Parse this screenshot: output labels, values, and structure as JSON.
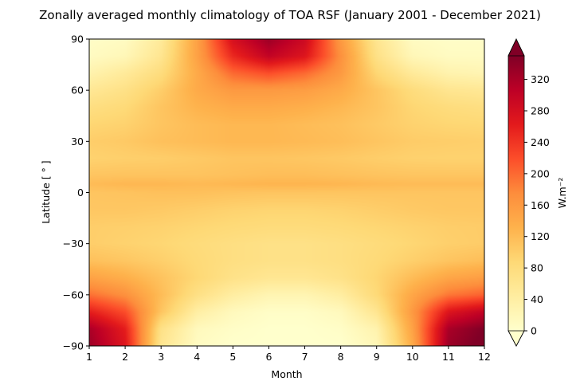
{
  "chart_data": {
    "type": "heatmap",
    "title": "Zonally averaged monthly climatology of TOA RSF (January 2001 - December 2021)",
    "xlabel": "Month",
    "ylabel": "Latitude [ ° ]",
    "x": [
      1,
      2,
      3,
      4,
      5,
      6,
      7,
      8,
      9,
      10,
      11,
      12
    ],
    "xlim": [
      1,
      12
    ],
    "ylim": [
      -90,
      90
    ],
    "xticks": [
      "1",
      "2",
      "3",
      "4",
      "5",
      "6",
      "7",
      "8",
      "9",
      "10",
      "11",
      "12"
    ],
    "yticks": [
      "90",
      "60",
      "30",
      "0",
      "−30",
      "−60",
      "−90"
    ],
    "ytick_values": [
      90,
      60,
      30,
      0,
      -30,
      -60,
      -90
    ],
    "latitudes": [
      90,
      80,
      70,
      60,
      50,
      40,
      30,
      20,
      10,
      5,
      0,
      -10,
      -20,
      -30,
      -40,
      -50,
      -60,
      -70,
      -80,
      -90
    ],
    "values": [
      [
        5,
        10,
        50,
        150,
        280,
        330,
        290,
        160,
        60,
        10,
        5,
        5
      ],
      [
        10,
        20,
        60,
        150,
        250,
        300,
        270,
        170,
        70,
        20,
        10,
        10
      ],
      [
        30,
        50,
        80,
        140,
        200,
        220,
        200,
        160,
        90,
        50,
        30,
        25
      ],
      [
        55,
        70,
        100,
        140,
        160,
        160,
        155,
        140,
        110,
        80,
        60,
        55
      ],
      [
        75,
        85,
        110,
        130,
        140,
        140,
        135,
        125,
        110,
        90,
        80,
        75
      ],
      [
        90,
        95,
        110,
        120,
        125,
        125,
        120,
        115,
        105,
        95,
        90,
        88
      ],
      [
        100,
        105,
        115,
        120,
        125,
        125,
        122,
        118,
        110,
        102,
        100,
        98
      ],
      [
        95,
        98,
        100,
        105,
        110,
        110,
        108,
        105,
        100,
        96,
        95,
        95
      ],
      [
        110,
        112,
        112,
        112,
        115,
        118,
        118,
        115,
        112,
        110,
        110,
        110
      ],
      [
        120,
        125,
        125,
        122,
        125,
        128,
        128,
        126,
        122,
        120,
        120,
        120
      ],
      [
        110,
        112,
        115,
        115,
        112,
        110,
        110,
        110,
        110,
        110,
        110,
        110
      ],
      [
        108,
        108,
        105,
        100,
        95,
        92,
        92,
        95,
        100,
        105,
        108,
        108
      ],
      [
        100,
        98,
        95,
        90,
        85,
        82,
        82,
        85,
        90,
        95,
        100,
        102
      ],
      [
        100,
        95,
        90,
        82,
        75,
        70,
        70,
        75,
        82,
        90,
        98,
        102
      ],
      [
        115,
        108,
        98,
        85,
        75,
        70,
        70,
        75,
        85,
        98,
        110,
        118
      ],
      [
        150,
        135,
        112,
        88,
        68,
        58,
        58,
        68,
        90,
        120,
        145,
        155
      ],
      [
        195,
        170,
        120,
        72,
        42,
        25,
        25,
        42,
        85,
        145,
        190,
        205
      ],
      [
        260,
        220,
        110,
        40,
        15,
        5,
        5,
        15,
        60,
        160,
        270,
        300
      ],
      [
        320,
        260,
        70,
        15,
        5,
        0,
        0,
        5,
        30,
        150,
        320,
        350
      ],
      [
        330,
        270,
        60,
        10,
        0,
        0,
        0,
        0,
        20,
        140,
        330,
        360
      ]
    ],
    "colorbar": {
      "label": "W.m⁻²",
      "min": 0,
      "max": 350,
      "ticks": [
        "0",
        "40",
        "80",
        "120",
        "160",
        "200",
        "240",
        "280",
        "320"
      ],
      "tick_values": [
        0,
        40,
        80,
        120,
        160,
        200,
        240,
        280,
        320
      ],
      "extend": "both",
      "colormap": "YlOrRd",
      "colors": [
        "#ffffcc",
        "#ffeda0",
        "#fed976",
        "#feb24c",
        "#fd8d3c",
        "#fc4e2a",
        "#e31a1c",
        "#bd0026",
        "#800026"
      ]
    }
  }
}
